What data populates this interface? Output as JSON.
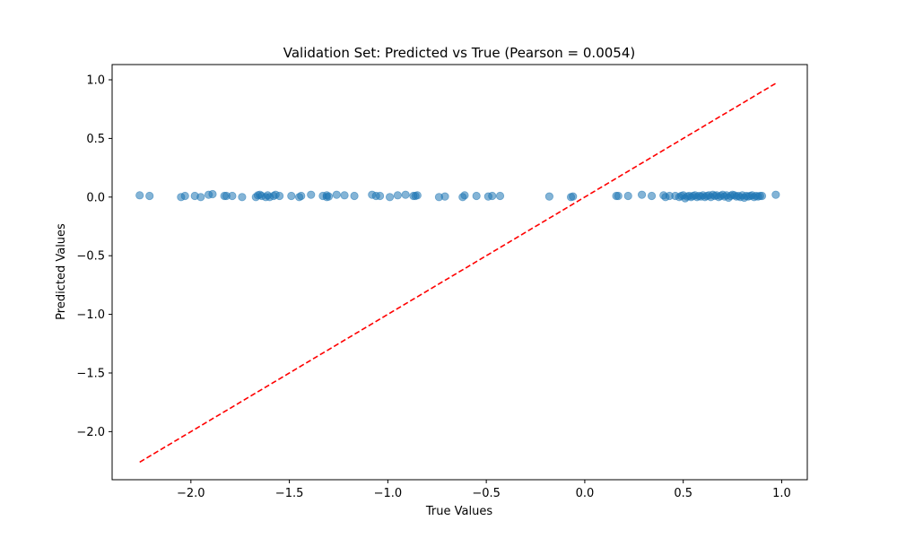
{
  "chart_data": {
    "type": "scatter",
    "title": "Validation Set: Predicted vs True (Pearson = 0.0054)",
    "xlabel": "True Values",
    "ylabel": "Predicted Values",
    "xlim": [
      -2.4,
      1.13
    ],
    "ylim": [
      -2.41,
      1.13
    ],
    "xticks": [
      -2.0,
      -1.5,
      -1.0,
      -0.5,
      0.0,
      0.5,
      1.0
    ],
    "xtick_labels": [
      "−2.0",
      "−1.5",
      "−1.0",
      "−0.5",
      "0.0",
      "0.5",
      "1.0"
    ],
    "yticks": [
      1.0,
      0.5,
      0.0,
      -0.5,
      -1.0,
      -1.5,
      -2.0
    ],
    "ytick_labels": [
      "1.0",
      "0.5",
      "0.0",
      "−0.5",
      "−1.0",
      "−1.5",
      "−2.0"
    ],
    "grid": false,
    "series": [
      {
        "kind": "points",
        "color": "#1f77b4",
        "opacity": 0.55,
        "points": [
          [
            -2.26,
            0.015
          ],
          [
            -2.21,
            0.01
          ],
          [
            -2.05,
            0.0
          ],
          [
            -2.03,
            0.01
          ],
          [
            -1.98,
            0.01
          ],
          [
            -1.95,
            0.0
          ],
          [
            -1.91,
            0.02
          ],
          [
            -1.89,
            0.025
          ],
          [
            -1.83,
            0.01
          ],
          [
            -1.82,
            0.01
          ],
          [
            -1.79,
            0.01
          ],
          [
            -1.74,
            0.0
          ],
          [
            -1.67,
            0.0
          ],
          [
            -1.66,
            0.015
          ],
          [
            -1.65,
            0.02
          ],
          [
            -1.64,
            0.01
          ],
          [
            -1.62,
            0.0
          ],
          [
            -1.61,
            0.015
          ],
          [
            -1.6,
            0.0
          ],
          [
            -1.58,
            0.01
          ],
          [
            -1.57,
            0.02
          ],
          [
            -1.55,
            0.01
          ],
          [
            -1.49,
            0.01
          ],
          [
            -1.45,
            0.0
          ],
          [
            -1.44,
            0.01
          ],
          [
            -1.39,
            0.02
          ],
          [
            -1.33,
            0.01
          ],
          [
            -1.31,
            0.015
          ],
          [
            -1.31,
            0.0
          ],
          [
            -1.3,
            0.005
          ],
          [
            -1.26,
            0.02
          ],
          [
            -1.22,
            0.015
          ],
          [
            -1.17,
            0.01
          ],
          [
            -1.08,
            0.02
          ],
          [
            -1.06,
            0.01
          ],
          [
            -1.04,
            0.01
          ],
          [
            -0.99,
            0.0
          ],
          [
            -0.95,
            0.015
          ],
          [
            -0.91,
            0.02
          ],
          [
            -0.87,
            0.01
          ],
          [
            -0.86,
            0.01
          ],
          [
            -0.85,
            0.015
          ],
          [
            -0.74,
            0.0
          ],
          [
            -0.71,
            0.005
          ],
          [
            -0.62,
            0.0
          ],
          [
            -0.61,
            0.015
          ],
          [
            -0.55,
            0.01
          ],
          [
            -0.49,
            0.005
          ],
          [
            -0.47,
            0.01
          ],
          [
            -0.43,
            0.01
          ],
          [
            -0.18,
            0.005
          ],
          [
            -0.07,
            0.0
          ],
          [
            -0.06,
            0.005
          ],
          [
            0.16,
            0.01
          ],
          [
            0.17,
            0.01
          ],
          [
            0.22,
            0.01
          ],
          [
            0.29,
            0.02
          ],
          [
            0.34,
            0.01
          ],
          [
            0.4,
            0.015
          ],
          [
            0.41,
            0.0
          ],
          [
            0.43,
            0.01
          ],
          [
            0.46,
            0.01
          ],
          [
            0.48,
            0.0
          ],
          [
            0.49,
            0.01
          ],
          [
            0.5,
            0.015
          ],
          [
            0.51,
            -0.01
          ],
          [
            0.52,
            0.005
          ],
          [
            0.53,
            0.01
          ],
          [
            0.54,
            0.0
          ],
          [
            0.55,
            0.01
          ],
          [
            0.56,
            0.015
          ],
          [
            0.57,
            0.0
          ],
          [
            0.58,
            0.01
          ],
          [
            0.59,
            0.005
          ],
          [
            0.6,
            0.015
          ],
          [
            0.61,
            0.0
          ],
          [
            0.62,
            0.01
          ],
          [
            0.63,
            0.015
          ],
          [
            0.64,
            0.0
          ],
          [
            0.65,
            0.02
          ],
          [
            0.66,
            0.01
          ],
          [
            0.67,
            0.015
          ],
          [
            0.68,
            0.0
          ],
          [
            0.69,
            0.01
          ],
          [
            0.7,
            0.02
          ],
          [
            0.71,
            0.005
          ],
          [
            0.72,
            0.015
          ],
          [
            0.73,
            -0.005
          ],
          [
            0.74,
            0.01
          ],
          [
            0.75,
            0.02
          ],
          [
            0.76,
            0.015
          ],
          [
            0.77,
            0.005
          ],
          [
            0.78,
            0.01
          ],
          [
            0.79,
            0.0
          ],
          [
            0.8,
            0.015
          ],
          [
            0.81,
            -0.005
          ],
          [
            0.82,
            0.01
          ],
          [
            0.83,
            0.005
          ],
          [
            0.84,
            0.01
          ],
          [
            0.85,
            0.015
          ],
          [
            0.86,
            0.0
          ],
          [
            0.87,
            0.01
          ],
          [
            0.88,
            0.005
          ],
          [
            0.89,
            0.01
          ],
          [
            0.9,
            0.01
          ],
          [
            0.97,
            0.02
          ]
        ]
      },
      {
        "kind": "reference-line",
        "color": "#ff0000",
        "dash": "dashed",
        "from": [
          -2.26,
          -2.26
        ],
        "to": [
          0.97,
          0.97
        ]
      }
    ]
  }
}
